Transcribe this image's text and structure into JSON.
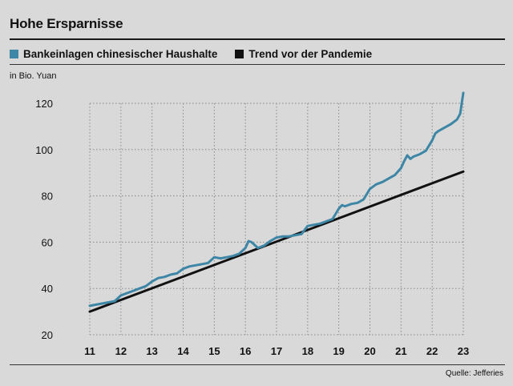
{
  "title": "Hohe Ersparnisse",
  "unit_label": "in Bio. Yuan",
  "source": "Quelle: Jefferies",
  "colors": {
    "series_blue": "#3d86a6",
    "trend": "#111111",
    "background": "#d9d9d9",
    "grid": "#888888"
  },
  "chart_data": {
    "type": "line",
    "title": "Hohe Ersparnisse",
    "ylabel": "in Bio. Yuan",
    "xlim": [
      11,
      23
    ],
    "ylim": [
      20,
      125
    ],
    "x_ticks": [
      "11",
      "12",
      "13",
      "14",
      "15",
      "16",
      "17",
      "18",
      "19",
      "20",
      "21",
      "22",
      "23"
    ],
    "y_ticks": [
      "20",
      "40",
      "60",
      "80",
      "100",
      "120"
    ],
    "grid": "dotted",
    "legend_position": "top-left",
    "series": [
      {
        "name": "Bankeinlagen chinesischer Haushalte",
        "color": "#3d86a6",
        "x": [
          11.0,
          11.2,
          11.4,
          11.6,
          11.8,
          12.0,
          12.2,
          12.4,
          12.6,
          12.8,
          13.0,
          13.2,
          13.4,
          13.6,
          13.8,
          14.0,
          14.2,
          14.4,
          14.6,
          14.8,
          15.0,
          15.2,
          15.4,
          15.6,
          15.8,
          16.0,
          16.1,
          16.2,
          16.4,
          16.5,
          16.6,
          16.8,
          17.0,
          17.2,
          17.4,
          17.6,
          17.8,
          18.0,
          18.2,
          18.4,
          18.6,
          18.8,
          19.0,
          19.1,
          19.2,
          19.4,
          19.6,
          19.8,
          20.0,
          20.2,
          20.4,
          20.6,
          20.8,
          21.0,
          21.1,
          21.2,
          21.3,
          21.4,
          21.6,
          21.8,
          22.0,
          22.1,
          22.2,
          22.4,
          22.6,
          22.8,
          22.9,
          23.0
        ],
        "values": [
          32.5,
          33.0,
          33.5,
          34.0,
          34.5,
          37.0,
          38.0,
          39.0,
          40.0,
          41.0,
          43.0,
          44.5,
          45.0,
          46.0,
          46.5,
          48.5,
          49.5,
          50.0,
          50.5,
          51.0,
          53.5,
          53.0,
          53.5,
          54.0,
          55.0,
          57.5,
          60.5,
          60.0,
          57.5,
          58.0,
          58.5,
          60.5,
          62.0,
          62.5,
          62.5,
          63.0,
          63.5,
          67.0,
          67.5,
          68.0,
          69.0,
          70.0,
          74.5,
          76.0,
          75.5,
          76.5,
          77.0,
          78.5,
          83.0,
          85.0,
          86.0,
          87.5,
          89.0,
          92.0,
          95.0,
          97.5,
          96.0,
          97.0,
          98.0,
          99.5,
          104.0,
          107.0,
          108.0,
          109.5,
          111.0,
          113.0,
          115.5,
          124.5
        ]
      },
      {
        "name": "Trend vor der Pandemie",
        "color": "#111111",
        "x": [
          11.0,
          23.0
        ],
        "values": [
          30.0,
          90.5
        ]
      }
    ]
  }
}
